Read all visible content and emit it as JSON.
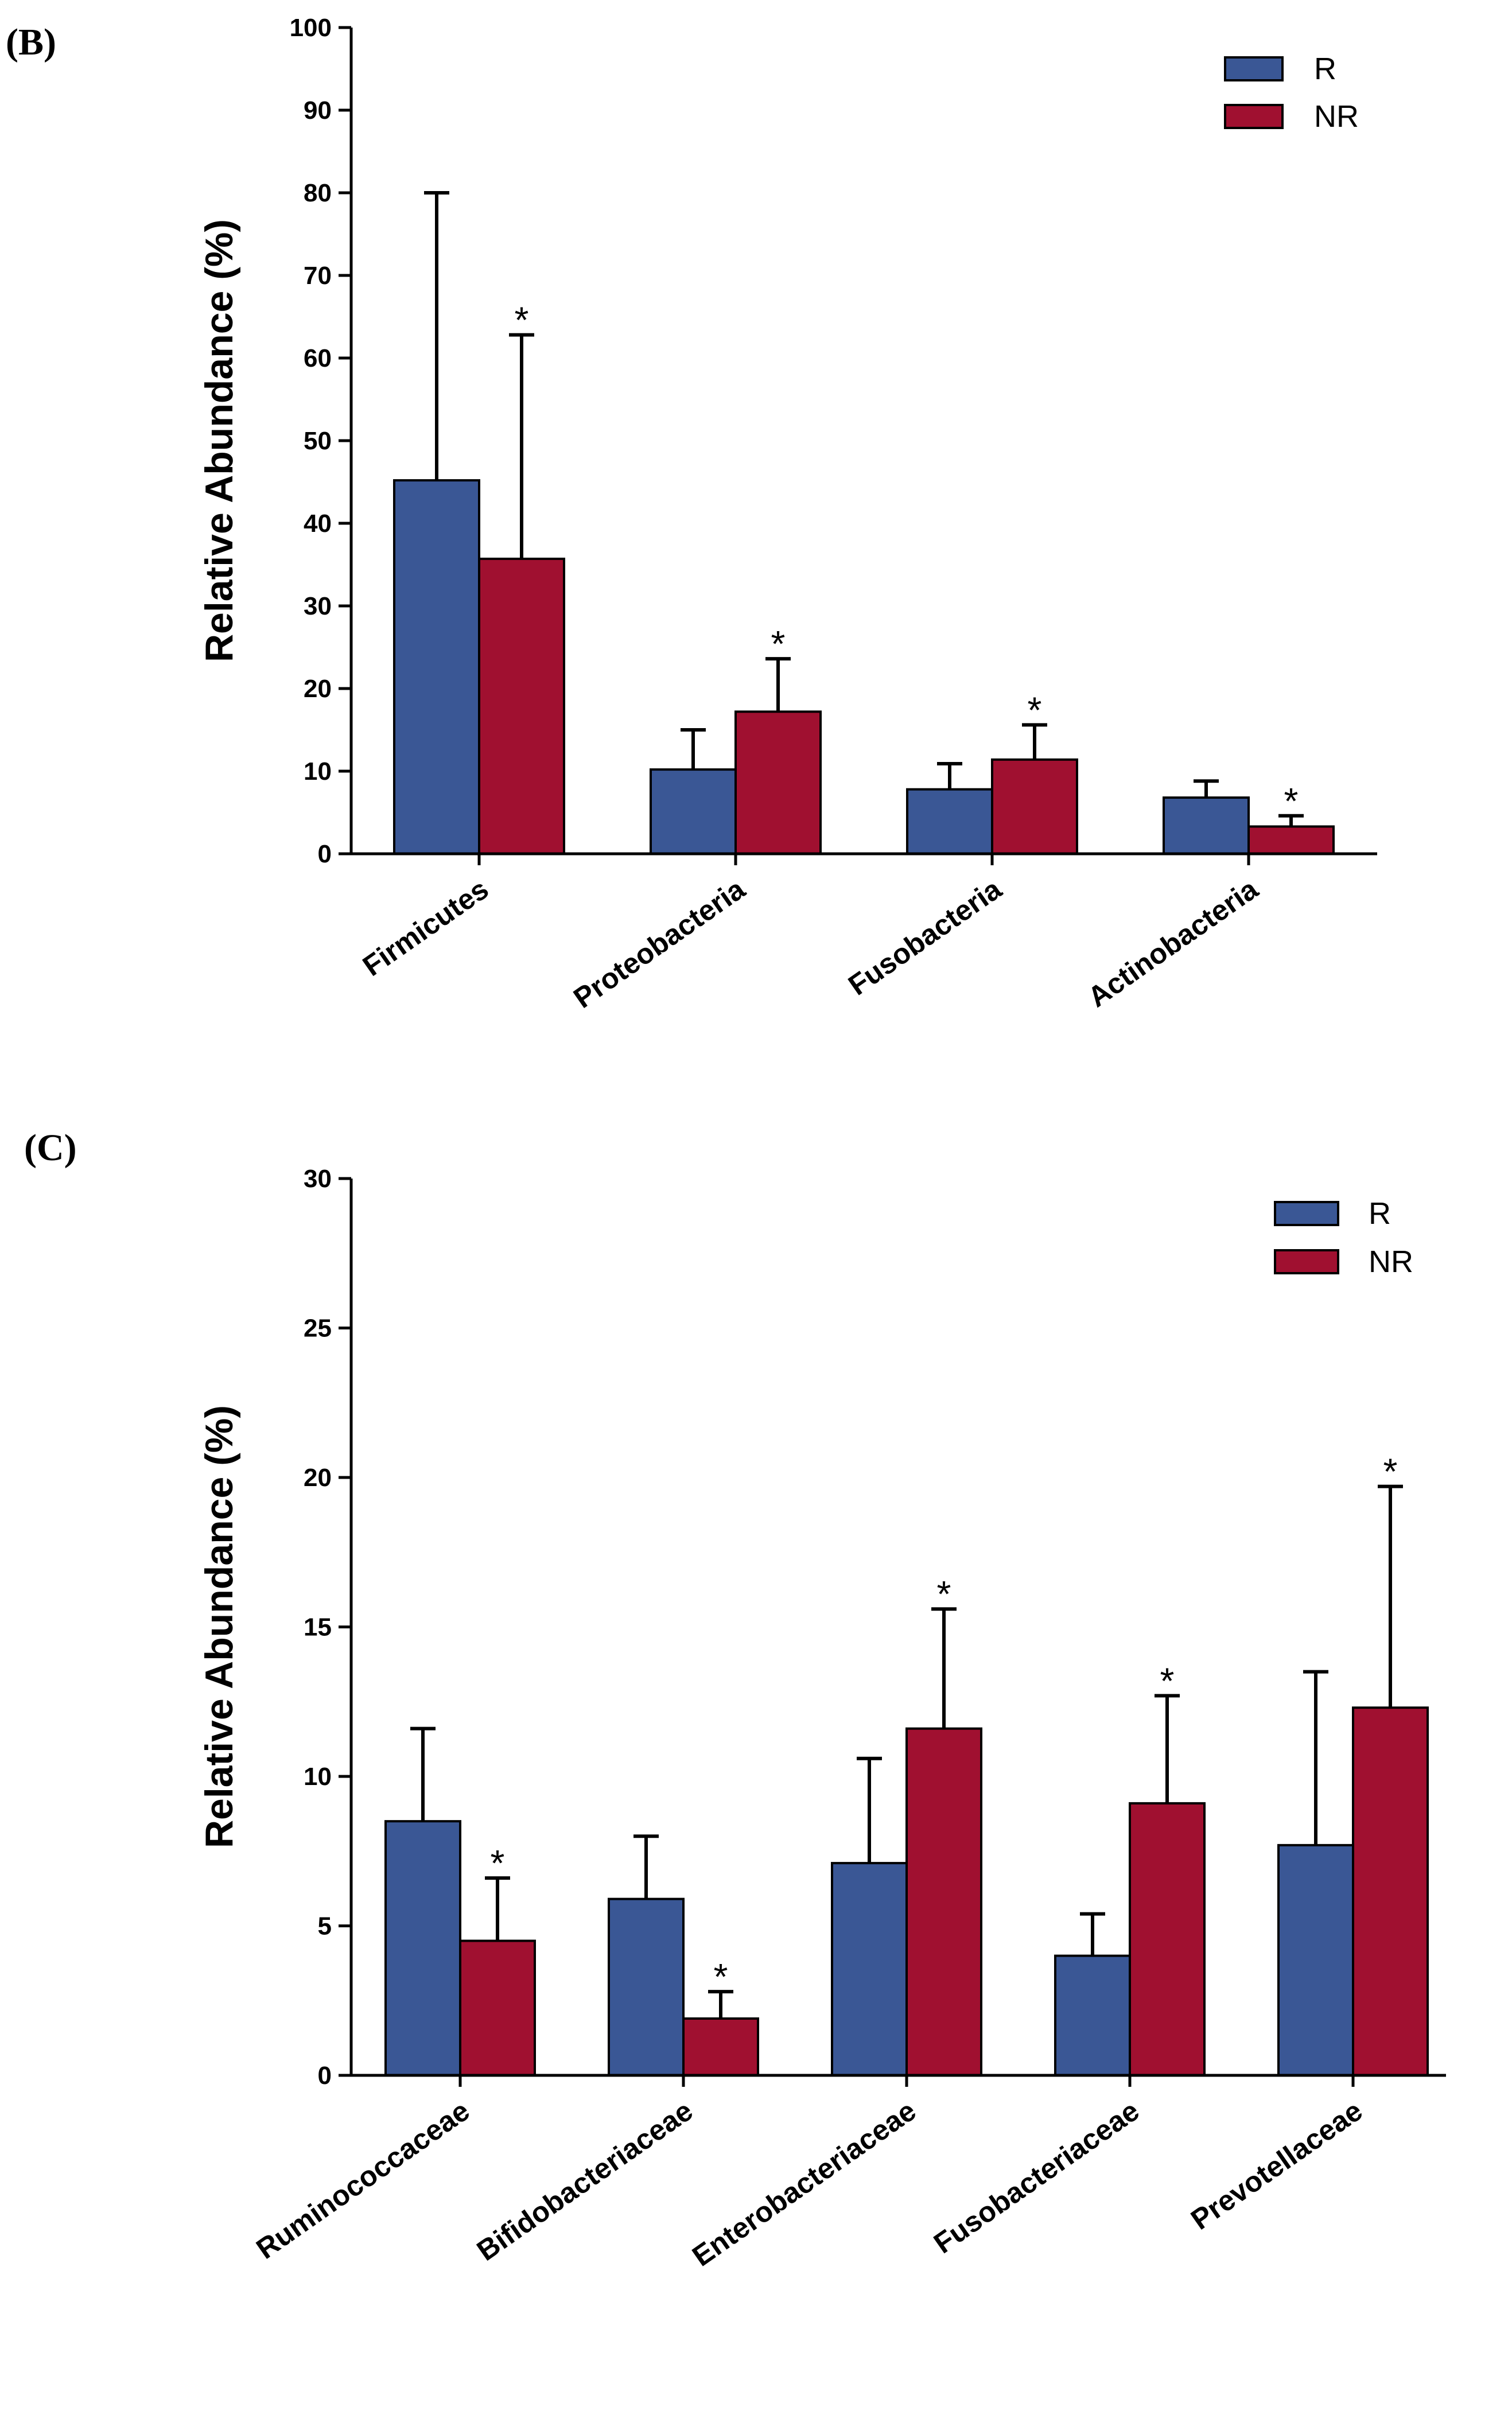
{
  "chart_data": [
    {
      "panel_label": "(B)",
      "type": "bar",
      "ylabel": "Relative Abundance (%)",
      "xlabel": "",
      "ylim": [
        0,
        100
      ],
      "yticks": [
        0,
        10,
        20,
        30,
        40,
        50,
        60,
        70,
        80,
        90,
        100
      ],
      "categories": [
        "Firmicutes",
        "Proteobacteria",
        "Fusobacteria",
        "Actinobacteria"
      ],
      "series": [
        {
          "name": "R",
          "color": "#3a5795",
          "values": [
            45.2,
            10.2,
            7.8,
            6.8
          ],
          "errors": [
            34.8,
            4.8,
            3.1,
            2.0
          ]
        },
        {
          "name": "NR",
          "color": "#a01030",
          "values": [
            35.7,
            17.2,
            11.4,
            3.3
          ],
          "errors": [
            27.1,
            6.4,
            4.2,
            1.3
          ]
        }
      ],
      "significance": {
        "series": "NR",
        "flags": [
          true,
          true,
          true,
          true
        ],
        "marker": "*"
      },
      "legend": "top-right"
    },
    {
      "panel_label": "(C)",
      "type": "bar",
      "ylabel": "Relative Abundance (%)",
      "xlabel": "",
      "ylim": [
        0,
        30
      ],
      "yticks": [
        0,
        5,
        10,
        15,
        20,
        25,
        30
      ],
      "categories": [
        "Ruminococcaceae",
        "Bifidobacteriaceae",
        "Enterobacteriaceae",
        "Fusobacteriaceae",
        "Prevotellaceae"
      ],
      "series": [
        {
          "name": "R",
          "color": "#3a5795",
          "values": [
            8.5,
            5.9,
            7.1,
            4.0,
            7.7
          ],
          "errors": [
            3.1,
            2.1,
            3.5,
            1.4,
            5.8
          ]
        },
        {
          "name": "NR",
          "color": "#a01030",
          "values": [
            4.5,
            1.9,
            11.6,
            9.1,
            12.3
          ],
          "errors": [
            2.1,
            0.9,
            4.0,
            3.6,
            7.4
          ]
        }
      ],
      "significance": {
        "series": "NR",
        "flags": [
          true,
          true,
          true,
          true,
          true
        ],
        "marker": "*"
      },
      "legend": "top-right"
    }
  ]
}
